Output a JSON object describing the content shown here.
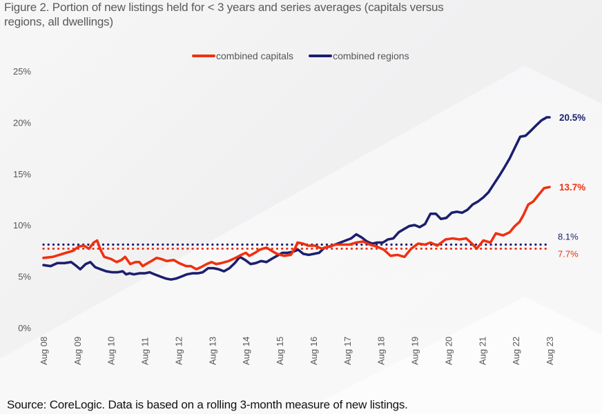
{
  "figure": {
    "title": "Figure 2. Portion of new listings held for < 3 years and series averages (capitals versus regions, all dwellings)",
    "source": "Source: CoreLogic. Data is based on a rolling 3-month measure of new listings."
  },
  "legend": [
    {
      "name": "combined capitals",
      "color": "#f0300f"
    },
    {
      "name": "combined regions",
      "color": "#1c1f6e"
    }
  ],
  "chart_data": {
    "type": "line",
    "title": "Portion of new listings held for < 3 years and series averages (capitals versus regions, all dwellings)",
    "xlabel": "",
    "ylabel": "",
    "x_tick_labels": [
      "Aug 08",
      "Aug 09",
      "Aug 10",
      "Aug 11",
      "Aug 12",
      "Aug 13",
      "Aug 14",
      "Aug 15",
      "Aug 16",
      "Aug 17",
      "Aug 18",
      "Aug 19",
      "Aug 20",
      "Aug 21",
      "Aug 22",
      "Aug 23"
    ],
    "x_range": [
      2008.58,
      2023.58
    ],
    "y_tick_labels": [
      "0%",
      "5%",
      "10%",
      "15%",
      "20%",
      "25%"
    ],
    "y_ticks": [
      0,
      5,
      10,
      15,
      20,
      25
    ],
    "ylim": [
      0,
      25
    ],
    "grid": false,
    "legend_position": "top-center",
    "series": [
      {
        "name": "combined capitals",
        "color": "#f0300f",
        "end_label": "13.7%",
        "average": 7.7,
        "average_label": "7.7%",
        "x": [
          2008.58,
          2008.85,
          2009.05,
          2009.25,
          2009.46,
          2009.62,
          2009.77,
          2009.93,
          2010.07,
          2010.17,
          2010.27,
          2010.38,
          2010.58,
          2010.75,
          2010.89,
          2011.0,
          2011.15,
          2011.31,
          2011.42,
          2011.52,
          2011.62,
          2011.78,
          2011.93,
          2012.07,
          2012.23,
          2012.44,
          2012.6,
          2012.81,
          2012.95,
          2013.11,
          2013.25,
          2013.42,
          2013.56,
          2013.7,
          2013.85,
          2014.07,
          2014.27,
          2014.44,
          2014.58,
          2014.68,
          2014.85,
          2014.99,
          2015.19,
          2015.34,
          2015.5,
          2015.71,
          2015.91,
          2016.03,
          2016.11,
          2016.27,
          2016.42,
          2016.62,
          2016.83,
          2017.03,
          2017.24,
          2017.44,
          2017.65,
          2017.85,
          2018.05,
          2018.26,
          2018.46,
          2018.67,
          2018.87,
          2019.07,
          2019.28,
          2019.48,
          2019.69,
          2019.89,
          2020.05,
          2020.25,
          2020.5,
          2020.71,
          2020.91,
          2021.11,
          2021.28,
          2021.42,
          2021.62,
          2021.83,
          2021.99,
          2022.2,
          2022.4,
          2022.55,
          2022.69,
          2022.81,
          2022.95,
          2023.1,
          2023.22,
          2023.42,
          2023.58
        ],
        "values": [
          6.8,
          6.9,
          7.1,
          7.3,
          7.5,
          7.9,
          8.0,
          7.7,
          8.3,
          8.5,
          7.6,
          6.9,
          6.7,
          6.4,
          6.6,
          6.9,
          6.2,
          6.4,
          6.4,
          6.0,
          6.2,
          6.5,
          6.8,
          6.7,
          6.5,
          6.6,
          6.3,
          6.0,
          6.0,
          5.7,
          5.9,
          6.2,
          6.4,
          6.2,
          6.3,
          6.5,
          6.8,
          7.1,
          7.3,
          7.0,
          7.3,
          7.6,
          7.8,
          7.5,
          7.2,
          7.0,
          7.1,
          7.7,
          8.3,
          8.2,
          8.0,
          8.0,
          7.7,
          7.9,
          8.1,
          8.1,
          8.1,
          8.3,
          8.4,
          8.1,
          7.9,
          7.6,
          7.0,
          7.1,
          6.9,
          7.7,
          8.2,
          8.1,
          8.3,
          8.0,
          8.6,
          8.7,
          8.6,
          8.7,
          8.2,
          7.7,
          8.5,
          8.3,
          9.2,
          9.0,
          9.3,
          9.9,
          10.3,
          11.0,
          12.0,
          12.3,
          12.8,
          13.6,
          13.7
        ]
      },
      {
        "name": "combined regions",
        "color": "#1c1f6e",
        "end_label": "20.5%",
        "average": 8.1,
        "average_label": "8.1%",
        "x": [
          2008.58,
          2008.79,
          2008.99,
          2009.2,
          2009.4,
          2009.56,
          2009.67,
          2009.83,
          2009.97,
          2010.11,
          2010.27,
          2010.44,
          2010.62,
          2010.77,
          2010.93,
          2011.03,
          2011.13,
          2011.26,
          2011.42,
          2011.58,
          2011.73,
          2011.87,
          2012.03,
          2012.2,
          2012.36,
          2012.52,
          2012.68,
          2012.83,
          2012.99,
          2013.15,
          2013.3,
          2013.46,
          2013.62,
          2013.77,
          2013.93,
          2014.09,
          2014.25,
          2014.4,
          2014.56,
          2014.72,
          2014.87,
          2015.03,
          2015.19,
          2015.34,
          2015.5,
          2015.66,
          2015.81,
          2015.97,
          2016.13,
          2016.28,
          2016.44,
          2016.6,
          2016.75,
          2016.91,
          2017.07,
          2017.22,
          2017.38,
          2017.54,
          2017.7,
          2017.85,
          2018.01,
          2018.17,
          2018.32,
          2018.48,
          2018.64,
          2018.79,
          2018.95,
          2019.11,
          2019.26,
          2019.42,
          2019.58,
          2019.73,
          2019.89,
          2020.05,
          2020.21,
          2020.36,
          2020.52,
          2020.68,
          2020.83,
          2020.99,
          2021.15,
          2021.3,
          2021.46,
          2021.62,
          2021.77,
          2021.93,
          2022.09,
          2022.24,
          2022.4,
          2022.56,
          2022.71,
          2022.87,
          2023.03,
          2023.18,
          2023.34,
          2023.5,
          2023.58
        ],
        "values": [
          6.1,
          6.0,
          6.3,
          6.3,
          6.4,
          6.0,
          5.7,
          6.2,
          6.4,
          5.9,
          5.7,
          5.5,
          5.4,
          5.4,
          5.5,
          5.2,
          5.3,
          5.2,
          5.3,
          5.3,
          5.4,
          5.2,
          5.0,
          4.8,
          4.7,
          4.8,
          5.0,
          5.2,
          5.3,
          5.3,
          5.4,
          5.8,
          5.8,
          5.7,
          5.5,
          5.8,
          6.3,
          6.9,
          6.6,
          6.2,
          6.3,
          6.5,
          6.4,
          6.7,
          7.0,
          7.3,
          7.3,
          7.4,
          7.6,
          7.2,
          7.1,
          7.2,
          7.3,
          7.8,
          7.9,
          8.1,
          8.3,
          8.5,
          8.7,
          9.1,
          8.8,
          8.4,
          8.2,
          8.3,
          8.3,
          8.6,
          8.7,
          9.3,
          9.6,
          9.9,
          10.0,
          9.8,
          10.1,
          11.1,
          11.1,
          10.6,
          10.7,
          11.2,
          11.3,
          11.2,
          11.5,
          12.0,
          12.3,
          12.7,
          13.2,
          14.0,
          14.8,
          15.6,
          16.5,
          17.6,
          18.6,
          18.7,
          19.2,
          19.7,
          20.2,
          20.5,
          20.5
        ]
      }
    ]
  }
}
